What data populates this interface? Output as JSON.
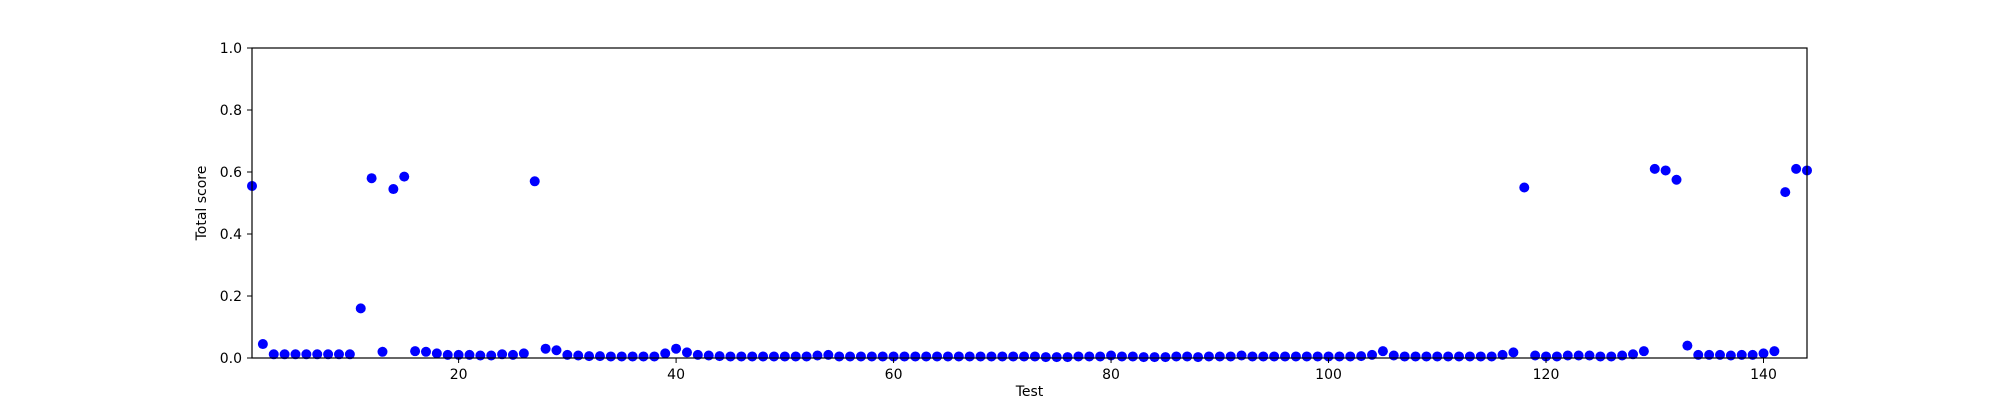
{
  "chart_data": {
    "type": "scatter",
    "title": "",
    "xlabel": "Test",
    "ylabel": "Total score",
    "xlim": [
      1,
      144
    ],
    "ylim": [
      0,
      1.0
    ],
    "xticks": [
      20,
      40,
      60,
      80,
      100,
      120,
      140
    ],
    "xtick_labels": [
      "20",
      "40",
      "60",
      "80",
      "100",
      "120",
      "140"
    ],
    "yticks": [
      0,
      0.2,
      0.4,
      0.6,
      0.8,
      1.0
    ],
    "ytick_labels": [
      "0.0",
      "0.2",
      "0.4",
      "0.6",
      "0.8",
      "1.0"
    ],
    "grid": false,
    "marker_color": "#0000ff",
    "series": [
      {
        "x": [
          1,
          2,
          3,
          4,
          5,
          6,
          7,
          8,
          9,
          10,
          11,
          12,
          13,
          14,
          15,
          16,
          17,
          18,
          19,
          20,
          21,
          22,
          23,
          24,
          25,
          26,
          27,
          28,
          29,
          30,
          31,
          32,
          33,
          34,
          35,
          36,
          37,
          38,
          39,
          40,
          41,
          42,
          43,
          44,
          45,
          46,
          47,
          48,
          49,
          50,
          51,
          52,
          53,
          54,
          55,
          56,
          57,
          58,
          59,
          60,
          61,
          62,
          63,
          64,
          65,
          66,
          67,
          68,
          69,
          70,
          71,
          72,
          73,
          74,
          75,
          76,
          77,
          78,
          79,
          80,
          81,
          82,
          83,
          84,
          85,
          86,
          87,
          88,
          89,
          90,
          91,
          92,
          93,
          94,
          95,
          96,
          97,
          98,
          99,
          100,
          101,
          102,
          103,
          104,
          105,
          106,
          107,
          108,
          109,
          110,
          111,
          112,
          113,
          114,
          115,
          116,
          117,
          118,
          119,
          120,
          121,
          122,
          123,
          124,
          125,
          126,
          127,
          128,
          129,
          130,
          131,
          132,
          133,
          134,
          135,
          136,
          137,
          138,
          139,
          140,
          141,
          142,
          143,
          144
        ],
        "y": [
          0.555,
          0.045,
          0.012,
          0.012,
          0.012,
          0.012,
          0.012,
          0.012,
          0.012,
          0.012,
          0.16,
          0.58,
          0.02,
          0.545,
          0.585,
          0.022,
          0.02,
          0.015,
          0.01,
          0.01,
          0.01,
          0.008,
          0.008,
          0.012,
          0.01,
          0.015,
          0.57,
          0.03,
          0.025,
          0.01,
          0.008,
          0.006,
          0.006,
          0.005,
          0.005,
          0.005,
          0.005,
          0.005,
          0.015,
          0.03,
          0.018,
          0.01,
          0.008,
          0.006,
          0.005,
          0.005,
          0.005,
          0.005,
          0.005,
          0.005,
          0.005,
          0.005,
          0.008,
          0.01,
          0.005,
          0.005,
          0.005,
          0.005,
          0.005,
          0.005,
          0.005,
          0.005,
          0.005,
          0.005,
          0.005,
          0.005,
          0.005,
          0.005,
          0.005,
          0.005,
          0.005,
          0.005,
          0.005,
          0.003,
          0.003,
          0.003,
          0.005,
          0.005,
          0.005,
          0.008,
          0.005,
          0.005,
          0.003,
          0.003,
          0.003,
          0.005,
          0.005,
          0.003,
          0.005,
          0.005,
          0.005,
          0.008,
          0.005,
          0.005,
          0.005,
          0.005,
          0.005,
          0.005,
          0.005,
          0.005,
          0.005,
          0.005,
          0.006,
          0.01,
          0.022,
          0.008,
          0.005,
          0.005,
          0.005,
          0.005,
          0.005,
          0.005,
          0.005,
          0.005,
          0.005,
          0.01,
          0.018,
          0.55,
          0.008,
          0.005,
          0.005,
          0.008,
          0.008,
          0.008,
          0.005,
          0.005,
          0.008,
          0.012,
          0.022,
          0.61,
          0.605,
          0.575,
          0.04,
          0.01,
          0.01,
          0.01,
          0.008,
          0.01,
          0.01,
          0.015,
          0.022,
          0.535,
          0.61,
          0.605
        ]
      }
    ]
  }
}
